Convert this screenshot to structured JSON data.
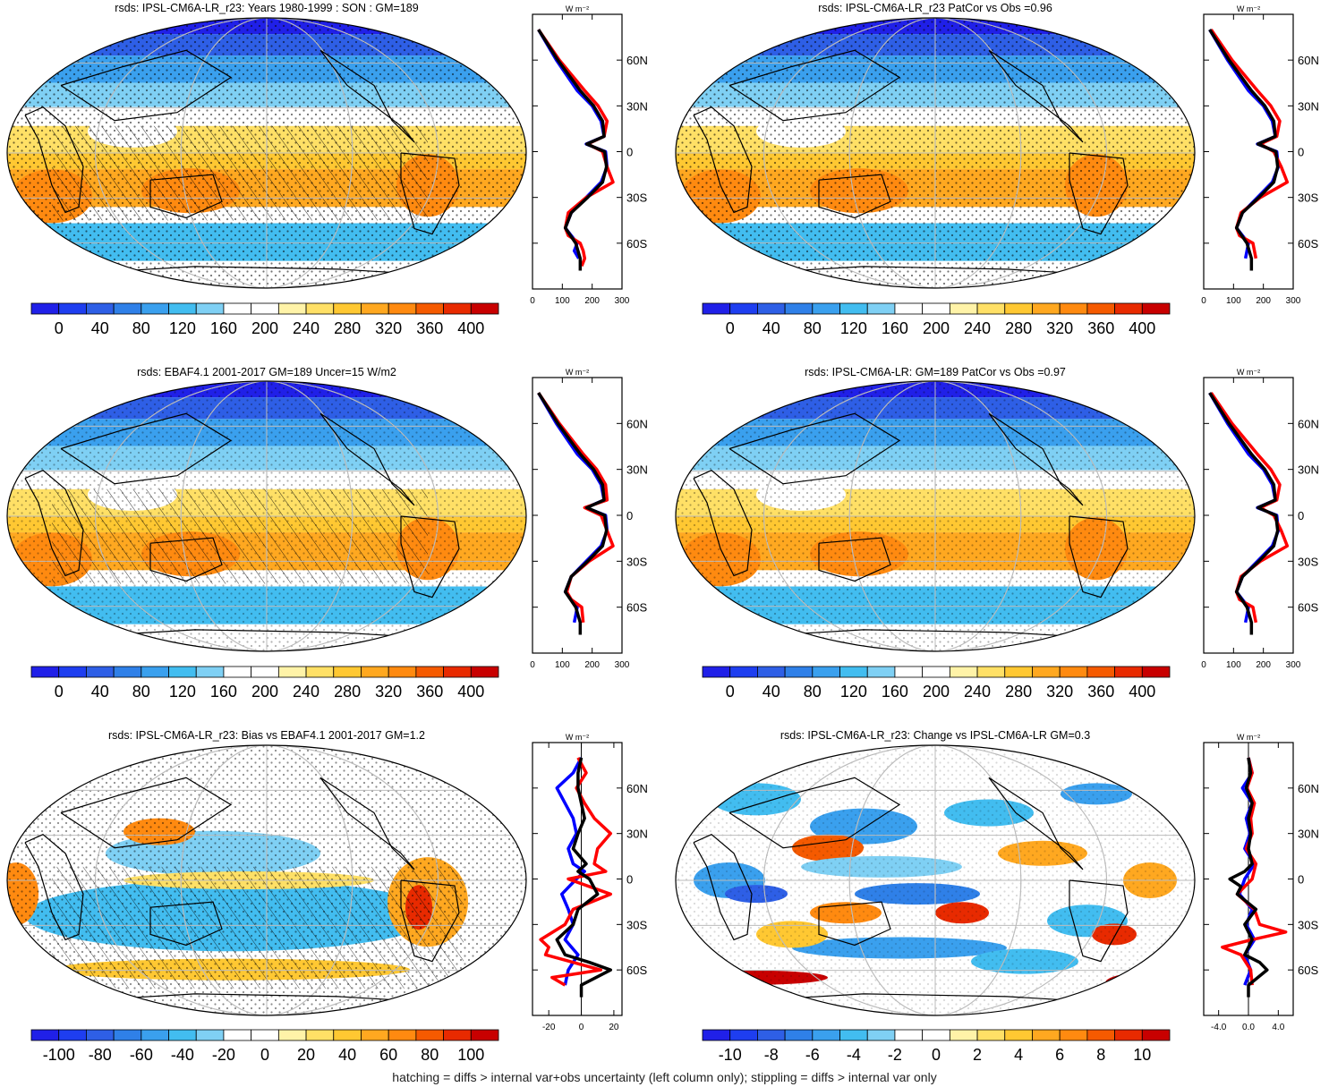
{
  "footnote": "hatching = diffs > internal var+obs uncertainty (left column only); stippling = diffs > internal var only",
  "colorbars": {
    "abs": {
      "labels": [
        "0",
        "40",
        "80",
        "120",
        "160",
        "200",
        "240",
        "280",
        "320",
        "360",
        "400"
      ]
    },
    "bias": {
      "labels": [
        "-100",
        "-80",
        "-60",
        "-40",
        "-20",
        "0",
        "20",
        "40",
        "60",
        "80",
        "100"
      ]
    },
    "change": {
      "labels": [
        "-10",
        "-8",
        "-6",
        "-4",
        "-2",
        "0",
        "2",
        "4",
        "6",
        "8",
        "10"
      ]
    }
  },
  "palette": [
    "#2020e8",
    "#1e3ef0",
    "#2e5fe6",
    "#2f80e8",
    "#3aa0ee",
    "#42bdf0",
    "#7fd0f4",
    "#ffffff",
    "#ffffff",
    "#fff3a8",
    "#ffe066",
    "#ffc832",
    "#ffa820",
    "#ff8a10",
    "#f55a00",
    "#e82a00",
    "#c80000"
  ],
  "profile_colors": {
    "model": "#0000ff",
    "obs": "#ff0000",
    "mean": "#000000"
  },
  "chart_data": [
    {
      "type": "heatmap",
      "panel": "row1-left",
      "title": "rsds: IPSL-CM6A-LR_r23: Years 1980-1999 : SON : GM=189",
      "colorbar": "abs",
      "profile": {
        "unit": "W m⁻²",
        "xticks": [
          "0",
          "100",
          "200",
          "300"
        ],
        "xlim": [
          0,
          300
        ],
        "lat_labels": [
          "60N",
          "30N",
          "0",
          "30S",
          "60S"
        ],
        "lats": [
          60,
          30,
          0,
          -30,
          -60
        ],
        "series": [
          {
            "color": "blue",
            "lat": [
              80,
              60,
              40,
              30,
              20,
              10,
              5,
              0,
              -10,
              -20,
              -30,
              -40,
              -50,
              -60,
              -65,
              -70
            ],
            "value": [
              20,
              80,
              150,
              200,
              230,
              240,
              180,
              245,
              250,
              230,
              180,
              130,
              110,
              150,
              140,
              155
            ]
          },
          {
            "color": "red",
            "lat": [
              80,
              60,
              40,
              30,
              20,
              10,
              5,
              0,
              -10,
              -20,
              -30,
              -40,
              -50,
              -55,
              -60,
              -65,
              -70,
              -75
            ],
            "value": [
              20,
              90,
              175,
              220,
              250,
              240,
              185,
              235,
              250,
              270,
              180,
              120,
              110,
              120,
              160,
              170,
              175,
              165
            ]
          },
          {
            "color": "black",
            "lat": [
              80,
              60,
              40,
              30,
              20,
              10,
              5,
              0,
              -10,
              -20,
              -30,
              -40,
              -50,
              -60,
              -70,
              -78
            ],
            "value": [
              20,
              85,
              160,
              205,
              235,
              240,
              182,
              242,
              248,
              235,
              185,
              130,
              110,
              145,
              160,
              160
            ]
          }
        ]
      }
    },
    {
      "type": "heatmap",
      "panel": "row1-right",
      "title": "rsds: IPSL-CM6A-LR_r23 PatCor vs Obs =0.96",
      "colorbar": "abs",
      "profile": {
        "unit": "W m⁻²",
        "xticks": [
          "0",
          "100",
          "200",
          "300"
        ],
        "xlim": [
          0,
          300
        ],
        "lat_labels": [
          "60N",
          "30N",
          "0",
          "30S",
          "60S"
        ],
        "lats": [
          60,
          30,
          0,
          -30,
          -60
        ],
        "series": [
          {
            "color": "blue",
            "lat": [
              80,
              60,
              40,
              30,
              20,
              10,
              5,
              0,
              -10,
              -20,
              -30,
              -40,
              -50,
              -60,
              -70
            ],
            "value": [
              20,
              80,
              150,
              200,
              230,
              240,
              180,
              245,
              250,
              230,
              180,
              130,
              110,
              150,
              140
            ]
          },
          {
            "color": "red",
            "lat": [
              80,
              60,
              40,
              30,
              20,
              10,
              5,
              0,
              -10,
              -20,
              -30,
              -40,
              -50,
              -55,
              -60,
              -70
            ],
            "value": [
              25,
              95,
              180,
              225,
              255,
              245,
              190,
              235,
              260,
              280,
              190,
              125,
              110,
              120,
              165,
              175
            ]
          },
          {
            "color": "black",
            "lat": [
              80,
              60,
              40,
              30,
              20,
              10,
              5,
              0,
              -10,
              -20,
              -30,
              -40,
              -50,
              -60,
              -70,
              -78
            ],
            "value": [
              20,
              85,
              160,
              205,
              235,
              240,
              182,
              242,
              248,
              235,
              185,
              130,
              110,
              145,
              160,
              160
            ]
          }
        ]
      }
    },
    {
      "type": "heatmap",
      "panel": "row2-left",
      "title": "rsds: EBAF4.1 2001-2017 GM=189 Uncer=15 W/m2",
      "colorbar": "abs",
      "profile": {
        "unit": "W m⁻²",
        "xticks": [
          "0",
          "100",
          "200",
          "300"
        ],
        "xlim": [
          0,
          300
        ],
        "lat_labels": [
          "60N",
          "30N",
          "0",
          "30S",
          "60S"
        ],
        "lats": [
          60,
          30,
          0,
          -30,
          -60
        ],
        "series": [
          {
            "color": "blue",
            "lat": [
              80,
              60,
              40,
              30,
              20,
              10,
              5,
              0,
              -10,
              -20,
              -30,
              -40,
              -50,
              -60,
              -70
            ],
            "value": [
              20,
              80,
              150,
              200,
              230,
              240,
              180,
              245,
              250,
              230,
              180,
              130,
              110,
              150,
              140
            ]
          },
          {
            "color": "red",
            "lat": [
              80,
              60,
              40,
              30,
              20,
              10,
              5,
              0,
              -10,
              -20,
              -30,
              -40,
              -50,
              -55,
              -60,
              -70
            ],
            "value": [
              20,
              90,
              170,
              215,
              245,
              250,
              175,
              230,
              250,
              270,
              190,
              130,
              115,
              130,
              165,
              170
            ]
          },
          {
            "color": "black",
            "lat": [
              80,
              60,
              40,
              30,
              20,
              10,
              5,
              0,
              -10,
              -20,
              -30,
              -40,
              -50,
              -60,
              -70,
              -78
            ],
            "value": [
              20,
              85,
              160,
              205,
              235,
              240,
              182,
              242,
              248,
              235,
              185,
              130,
              110,
              145,
              160,
              160
            ]
          }
        ]
      }
    },
    {
      "type": "heatmap",
      "panel": "row2-right",
      "title": "rsds: IPSL-CM6A-LR: GM=189 PatCor vs Obs =0.97",
      "colorbar": "abs",
      "profile": {
        "unit": "W m⁻²",
        "xticks": [
          "0",
          "100",
          "200",
          "300"
        ],
        "xlim": [
          0,
          300
        ],
        "lat_labels": [
          "60N",
          "30N",
          "0",
          "30S",
          "60S"
        ],
        "lats": [
          60,
          30,
          0,
          -30,
          -60
        ],
        "series": [
          {
            "color": "blue",
            "lat": [
              80,
              60,
              40,
              30,
              20,
              10,
              5,
              0,
              -10,
              -20,
              -30,
              -40,
              -50,
              -60,
              -70
            ],
            "value": [
              20,
              80,
              150,
              200,
              230,
              240,
              180,
              245,
              250,
              230,
              180,
              130,
              110,
              150,
              140
            ]
          },
          {
            "color": "red",
            "lat": [
              80,
              60,
              40,
              30,
              20,
              10,
              5,
              0,
              -10,
              -20,
              -30,
              -40,
              -50,
              -55,
              -60,
              -70
            ],
            "value": [
              25,
              95,
              180,
              225,
              255,
              245,
              190,
              235,
              260,
              280,
              190,
              125,
              110,
              120,
              165,
              175
            ]
          },
          {
            "color": "black",
            "lat": [
              80,
              60,
              40,
              30,
              20,
              10,
              5,
              0,
              -10,
              -20,
              -30,
              -40,
              -50,
              -60,
              -70,
              -78
            ],
            "value": [
              20,
              85,
              160,
              205,
              235,
              240,
              182,
              242,
              248,
              235,
              185,
              130,
              110,
              145,
              160,
              160
            ]
          }
        ]
      }
    },
    {
      "type": "heatmap",
      "panel": "row3-left",
      "title": "rsds: IPSL-CM6A-LR_r23: Bias vs EBAF4.1 2001-2017  GM=1.2",
      "colorbar": "bias",
      "profile": {
        "unit": "W m⁻²",
        "xticks": [
          "-20",
          "0",
          "20"
        ],
        "xlim": [
          -30,
          25
        ],
        "zero_line": true,
        "lat_labels": [
          "60N",
          "30N",
          "0",
          "30S",
          "60S"
        ],
        "lats": [
          60,
          30,
          0,
          -30,
          -60
        ],
        "series": [
          {
            "color": "blue",
            "lat": [
              80,
              70,
              60,
              50,
              40,
              30,
              20,
              10,
              5,
              0,
              -10,
              -20,
              -30,
              -40,
              -50,
              -60,
              -70
            ],
            "value": [
              0,
              -5,
              -15,
              -10,
              -5,
              -3,
              -8,
              -5,
              2,
              -3,
              -12,
              -8,
              -5,
              -10,
              -2,
              -8,
              -10
            ]
          },
          {
            "color": "red",
            "lat": [
              80,
              70,
              60,
              50,
              40,
              30,
              20,
              10,
              5,
              0,
              -10,
              -20,
              -30,
              -40,
              -45,
              -50,
              -55,
              -60,
              -65,
              -70
            ],
            "value": [
              -2,
              3,
              -3,
              2,
              8,
              18,
              10,
              8,
              15,
              -8,
              18,
              -5,
              -10,
              -25,
              -20,
              -22,
              -5,
              12,
              -18,
              -10
            ]
          },
          {
            "color": "black",
            "lat": [
              80,
              70,
              60,
              50,
              40,
              30,
              20,
              10,
              5,
              0,
              -10,
              -20,
              -30,
              -40,
              -50,
              -55,
              -60,
              -70,
              -78
            ],
            "value": [
              0,
              -2,
              -2,
              0,
              2,
              -2,
              -5,
              3,
              -2,
              5,
              10,
              -2,
              -5,
              -15,
              -10,
              5,
              18,
              0,
              0
            ]
          }
        ]
      }
    },
    {
      "type": "heatmap",
      "panel": "row3-right",
      "title": "rsds: IPSL-CM6A-LR_r23: Change vs IPSL-CM6A-LR GM=0.3",
      "colorbar": "change",
      "profile": {
        "unit": "W m⁻²",
        "xticks": [
          "-4.0",
          "0.0",
          "4.0"
        ],
        "xlim": [
          -6,
          6
        ],
        "zero_line": true,
        "lat_labels": [
          "60N",
          "30N",
          "0",
          "30S",
          "60S"
        ],
        "lats": [
          60,
          30,
          0,
          -30,
          -60
        ],
        "series": [
          {
            "color": "blue",
            "lat": [
              80,
              70,
              60,
              50,
              40,
              30,
              20,
              10,
              0,
              -10,
              -20,
              -30,
              -40,
              -50,
              -60,
              -70
            ],
            "value": [
              0,
              0.5,
              -0.8,
              0.5,
              -0.3,
              0.2,
              -0.5,
              0.8,
              -0.5,
              -1.2,
              0.5,
              -0.3,
              0.8,
              -0.5,
              0.3,
              -0.5
            ]
          },
          {
            "color": "red",
            "lat": [
              80,
              70,
              60,
              50,
              40,
              30,
              20,
              10,
              0,
              -10,
              -20,
              -30,
              -35,
              -40,
              -45,
              -50,
              -60,
              -70
            ],
            "value": [
              0,
              0.5,
              -0.2,
              0.8,
              0.3,
              0.5,
              -0.3,
              1.0,
              0.5,
              -1.5,
              0.8,
              1.5,
              5.0,
              0.5,
              -3.5,
              -1.0,
              0.3,
              0.5
            ]
          },
          {
            "color": "black",
            "lat": [
              80,
              70,
              60,
              50,
              40,
              30,
              20,
              10,
              5,
              0,
              -5,
              -10,
              -20,
              -30,
              -40,
              -50,
              -55,
              -60,
              -70,
              -78
            ],
            "value": [
              0,
              0.3,
              -0.3,
              0.5,
              0,
              0.3,
              0,
              0.5,
              -0.5,
              -2.5,
              -1.0,
              -1.5,
              1.0,
              -0.5,
              0.5,
              -0.5,
              1.5,
              2.5,
              0,
              0
            ]
          }
        ]
      }
    }
  ]
}
